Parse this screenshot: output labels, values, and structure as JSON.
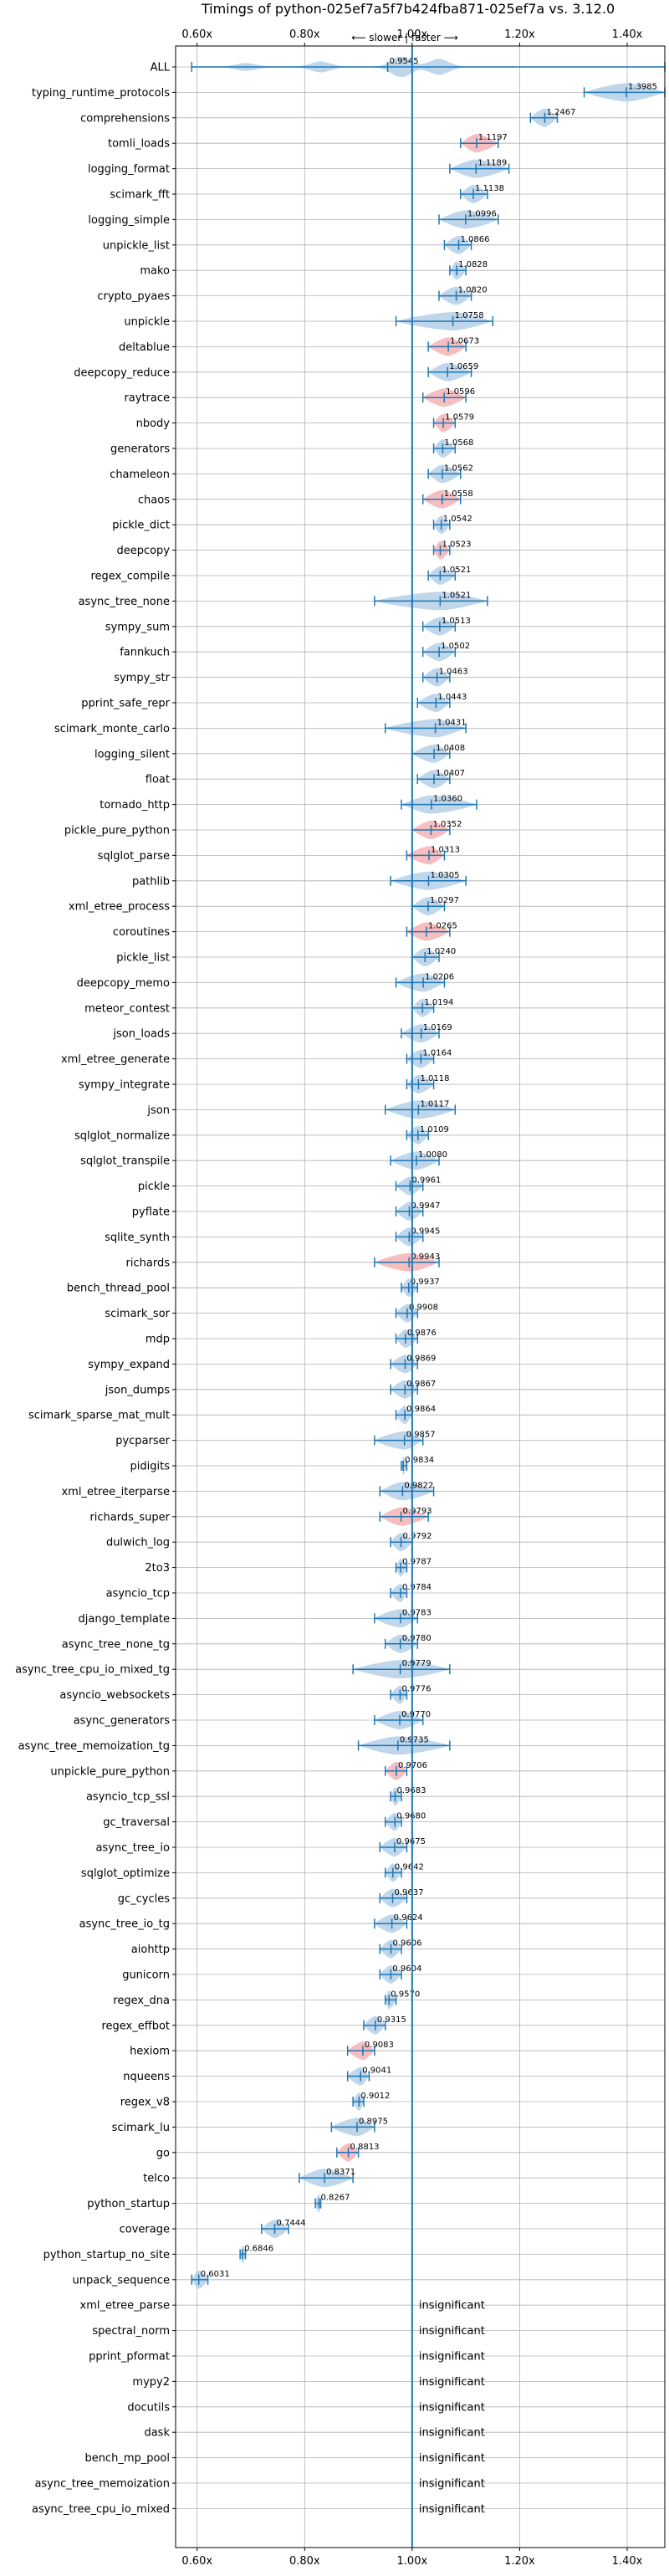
{
  "chart_data": {
    "type": "violin",
    "title": "Timings of python-025ef7a5f7b424fba871-025ef7a vs. 3.12.0",
    "direction_note": "⟵ slower | faster ⟶",
    "xlim": [
      0.56,
      1.47
    ],
    "x_ticks": [
      0.6,
      0.8,
      1.0,
      1.2,
      1.4
    ],
    "x_tick_labels": [
      "0.60x",
      "0.80x",
      "1.00x",
      "1.20x",
      "1.40x"
    ],
    "reference_x": 1.0,
    "insignificant_label": "insignificant",
    "colors": {
      "faster": "#aac8e4",
      "slower": "#f4a8aa",
      "line": "#1f77b4",
      "grid": "#b0b0b0"
    },
    "rows": [
      {
        "name": "ALL",
        "value": 0.9545,
        "lo": 0.59,
        "hi": 1.47,
        "color": "faster",
        "shape": "all"
      },
      {
        "name": "typing_runtime_protocols",
        "value": 1.3985,
        "lo": 1.32,
        "hi": 1.47,
        "color": "faster"
      },
      {
        "name": "comprehensions",
        "value": 1.2467,
        "lo": 1.22,
        "hi": 1.27,
        "color": "faster"
      },
      {
        "name": "tomli_loads",
        "value": 1.1197,
        "lo": 1.09,
        "hi": 1.16,
        "color": "slower"
      },
      {
        "name": "logging_format",
        "value": 1.1189,
        "lo": 1.07,
        "hi": 1.18,
        "color": "faster"
      },
      {
        "name": "scimark_fft",
        "value": 1.1138,
        "lo": 1.09,
        "hi": 1.14,
        "color": "faster"
      },
      {
        "name": "logging_simple",
        "value": 1.0996,
        "lo": 1.05,
        "hi": 1.16,
        "color": "faster"
      },
      {
        "name": "unpickle_list",
        "value": 1.0866,
        "lo": 1.06,
        "hi": 1.11,
        "color": "faster"
      },
      {
        "name": "mako",
        "value": 1.0828,
        "lo": 1.07,
        "hi": 1.1,
        "color": "faster"
      },
      {
        "name": "crypto_pyaes",
        "value": 1.082,
        "lo": 1.05,
        "hi": 1.11,
        "color": "faster"
      },
      {
        "name": "unpickle",
        "value": 1.0758,
        "lo": 0.97,
        "hi": 1.15,
        "color": "faster"
      },
      {
        "name": "deltablue",
        "value": 1.0673,
        "lo": 1.03,
        "hi": 1.1,
        "color": "slower"
      },
      {
        "name": "deepcopy_reduce",
        "value": 1.0659,
        "lo": 1.03,
        "hi": 1.11,
        "color": "faster"
      },
      {
        "name": "raytrace",
        "value": 1.0596,
        "lo": 1.02,
        "hi": 1.1,
        "color": "slower"
      },
      {
        "name": "nbody",
        "value": 1.0579,
        "lo": 1.04,
        "hi": 1.08,
        "color": "slower"
      },
      {
        "name": "generators",
        "value": 1.0568,
        "lo": 1.04,
        "hi": 1.08,
        "color": "faster"
      },
      {
        "name": "chameleon",
        "value": 1.0562,
        "lo": 1.03,
        "hi": 1.09,
        "color": "faster"
      },
      {
        "name": "chaos",
        "value": 1.0558,
        "lo": 1.02,
        "hi": 1.09,
        "color": "slower"
      },
      {
        "name": "pickle_dict",
        "value": 1.0542,
        "lo": 1.04,
        "hi": 1.07,
        "color": "faster"
      },
      {
        "name": "deepcopy",
        "value": 1.0523,
        "lo": 1.04,
        "hi": 1.07,
        "color": "slower"
      },
      {
        "name": "regex_compile",
        "value": 1.0521,
        "lo": 1.03,
        "hi": 1.08,
        "color": "faster"
      },
      {
        "name": "async_tree_none",
        "value": 1.0521,
        "lo": 0.93,
        "hi": 1.14,
        "color": "faster"
      },
      {
        "name": "sympy_sum",
        "value": 1.0513,
        "lo": 1.02,
        "hi": 1.08,
        "color": "faster"
      },
      {
        "name": "fannkuch",
        "value": 1.0502,
        "lo": 1.02,
        "hi": 1.08,
        "color": "faster"
      },
      {
        "name": "sympy_str",
        "value": 1.0463,
        "lo": 1.02,
        "hi": 1.07,
        "color": "faster"
      },
      {
        "name": "pprint_safe_repr",
        "value": 1.0443,
        "lo": 1.01,
        "hi": 1.07,
        "color": "faster"
      },
      {
        "name": "scimark_monte_carlo",
        "value": 1.0431,
        "lo": 0.95,
        "hi": 1.1,
        "color": "faster"
      },
      {
        "name": "logging_silent",
        "value": 1.0408,
        "lo": 1.0,
        "hi": 1.07,
        "color": "faster"
      },
      {
        "name": "float",
        "value": 1.0407,
        "lo": 1.01,
        "hi": 1.07,
        "color": "faster"
      },
      {
        "name": "tornado_http",
        "value": 1.036,
        "lo": 0.98,
        "hi": 1.12,
        "color": "faster"
      },
      {
        "name": "pickle_pure_python",
        "value": 1.0352,
        "lo": 1.0,
        "hi": 1.07,
        "color": "slower"
      },
      {
        "name": "sqlglot_parse",
        "value": 1.0313,
        "lo": 0.99,
        "hi": 1.06,
        "color": "slower"
      },
      {
        "name": "pathlib",
        "value": 1.0305,
        "lo": 0.96,
        "hi": 1.1,
        "color": "faster"
      },
      {
        "name": "xml_etree_process",
        "value": 1.0297,
        "lo": 1.0,
        "hi": 1.06,
        "color": "faster"
      },
      {
        "name": "coroutines",
        "value": 1.0265,
        "lo": 0.99,
        "hi": 1.07,
        "color": "slower"
      },
      {
        "name": "pickle_list",
        "value": 1.024,
        "lo": 1.0,
        "hi": 1.05,
        "color": "faster"
      },
      {
        "name": "deepcopy_memo",
        "value": 1.0206,
        "lo": 0.97,
        "hi": 1.06,
        "color": "faster"
      },
      {
        "name": "meteor_contest",
        "value": 1.0194,
        "lo": 1.0,
        "hi": 1.04,
        "color": "faster"
      },
      {
        "name": "json_loads",
        "value": 1.0169,
        "lo": 0.98,
        "hi": 1.05,
        "color": "faster"
      },
      {
        "name": "xml_etree_generate",
        "value": 1.0164,
        "lo": 0.99,
        "hi": 1.04,
        "color": "faster"
      },
      {
        "name": "sympy_integrate",
        "value": 1.0118,
        "lo": 0.99,
        "hi": 1.04,
        "color": "faster"
      },
      {
        "name": "json",
        "value": 1.0117,
        "lo": 0.95,
        "hi": 1.08,
        "color": "faster"
      },
      {
        "name": "sqlglot_normalize",
        "value": 1.0109,
        "lo": 0.99,
        "hi": 1.03,
        "color": "faster"
      },
      {
        "name": "sqlglot_transpile",
        "value": 1.008,
        "lo": 0.96,
        "hi": 1.05,
        "color": "faster"
      },
      {
        "name": "pickle",
        "value": 0.9961,
        "lo": 0.97,
        "hi": 1.02,
        "color": "faster"
      },
      {
        "name": "pyflate",
        "value": 0.9947,
        "lo": 0.97,
        "hi": 1.02,
        "color": "faster"
      },
      {
        "name": "sqlite_synth",
        "value": 0.9945,
        "lo": 0.97,
        "hi": 1.02,
        "color": "faster"
      },
      {
        "name": "richards",
        "value": 0.9943,
        "lo": 0.93,
        "hi": 1.05,
        "color": "slower"
      },
      {
        "name": "bench_thread_pool",
        "value": 0.9937,
        "lo": 0.98,
        "hi": 1.01,
        "color": "faster"
      },
      {
        "name": "scimark_sor",
        "value": 0.9908,
        "lo": 0.97,
        "hi": 1.01,
        "color": "faster"
      },
      {
        "name": "mdp",
        "value": 0.9876,
        "lo": 0.97,
        "hi": 1.01,
        "color": "faster"
      },
      {
        "name": "sympy_expand",
        "value": 0.9869,
        "lo": 0.96,
        "hi": 1.01,
        "color": "faster"
      },
      {
        "name": "json_dumps",
        "value": 0.9867,
        "lo": 0.96,
        "hi": 1.01,
        "color": "faster"
      },
      {
        "name": "scimark_sparse_mat_mult",
        "value": 0.9864,
        "lo": 0.97,
        "hi": 1.0,
        "color": "faster"
      },
      {
        "name": "pycparser",
        "value": 0.9857,
        "lo": 0.93,
        "hi": 1.02,
        "color": "faster"
      },
      {
        "name": "pidigits",
        "value": 0.9834,
        "lo": 0.98,
        "hi": 0.99,
        "color": "faster"
      },
      {
        "name": "xml_etree_iterparse",
        "value": 0.9822,
        "lo": 0.94,
        "hi": 1.04,
        "color": "faster"
      },
      {
        "name": "richards_super",
        "value": 0.9793,
        "lo": 0.94,
        "hi": 1.03,
        "color": "slower"
      },
      {
        "name": "dulwich_log",
        "value": 0.9792,
        "lo": 0.96,
        "hi": 1.0,
        "color": "faster"
      },
      {
        "name": "2to3",
        "value": 0.9787,
        "lo": 0.97,
        "hi": 0.99,
        "color": "faster"
      },
      {
        "name": "asyncio_tcp",
        "value": 0.9784,
        "lo": 0.96,
        "hi": 0.99,
        "color": "faster"
      },
      {
        "name": "django_template",
        "value": 0.9783,
        "lo": 0.93,
        "hi": 1.01,
        "color": "faster"
      },
      {
        "name": "async_tree_none_tg",
        "value": 0.978,
        "lo": 0.95,
        "hi": 1.01,
        "color": "faster"
      },
      {
        "name": "async_tree_cpu_io_mixed_tg",
        "value": 0.9779,
        "lo": 0.89,
        "hi": 1.07,
        "color": "faster"
      },
      {
        "name": "asyncio_websockets",
        "value": 0.9776,
        "lo": 0.96,
        "hi": 0.99,
        "color": "faster"
      },
      {
        "name": "async_generators",
        "value": 0.977,
        "lo": 0.93,
        "hi": 1.02,
        "color": "faster"
      },
      {
        "name": "async_tree_memoization_tg",
        "value": 0.9735,
        "lo": 0.9,
        "hi": 1.07,
        "color": "faster"
      },
      {
        "name": "unpickle_pure_python",
        "value": 0.9706,
        "lo": 0.95,
        "hi": 0.99,
        "color": "slower"
      },
      {
        "name": "asyncio_tcp_ssl",
        "value": 0.9683,
        "lo": 0.96,
        "hi": 0.98,
        "color": "faster"
      },
      {
        "name": "gc_traversal",
        "value": 0.968,
        "lo": 0.95,
        "hi": 0.98,
        "color": "faster"
      },
      {
        "name": "async_tree_io",
        "value": 0.9675,
        "lo": 0.94,
        "hi": 0.99,
        "color": "faster"
      },
      {
        "name": "sqlglot_optimize",
        "value": 0.9642,
        "lo": 0.95,
        "hi": 0.98,
        "color": "faster"
      },
      {
        "name": "gc_cycles",
        "value": 0.9637,
        "lo": 0.94,
        "hi": 0.99,
        "color": "faster"
      },
      {
        "name": "async_tree_io_tg",
        "value": 0.9624,
        "lo": 0.93,
        "hi": 0.99,
        "color": "faster"
      },
      {
        "name": "aiohttp",
        "value": 0.9606,
        "lo": 0.94,
        "hi": 0.98,
        "color": "faster"
      },
      {
        "name": "gunicorn",
        "value": 0.9604,
        "lo": 0.94,
        "hi": 0.98,
        "color": "faster"
      },
      {
        "name": "regex_dna",
        "value": 0.957,
        "lo": 0.95,
        "hi": 0.97,
        "color": "faster"
      },
      {
        "name": "regex_effbot",
        "value": 0.9315,
        "lo": 0.91,
        "hi": 0.95,
        "color": "faster"
      },
      {
        "name": "hexiom",
        "value": 0.9083,
        "lo": 0.88,
        "hi": 0.93,
        "color": "slower"
      },
      {
        "name": "nqueens",
        "value": 0.9041,
        "lo": 0.88,
        "hi": 0.92,
        "color": "faster"
      },
      {
        "name": "regex_v8",
        "value": 0.9012,
        "lo": 0.89,
        "hi": 0.91,
        "color": "faster"
      },
      {
        "name": "scimark_lu",
        "value": 0.8975,
        "lo": 0.85,
        "hi": 0.93,
        "color": "faster"
      },
      {
        "name": "go",
        "value": 0.8813,
        "lo": 0.86,
        "hi": 0.9,
        "color": "slower"
      },
      {
        "name": "telco",
        "value": 0.8371,
        "lo": 0.79,
        "hi": 0.89,
        "color": "faster"
      },
      {
        "name": "python_startup",
        "value": 0.8267,
        "lo": 0.82,
        "hi": 0.83,
        "color": "faster"
      },
      {
        "name": "coverage",
        "value": 0.7444,
        "lo": 0.72,
        "hi": 0.77,
        "color": "faster"
      },
      {
        "name": "python_startup_no_site",
        "value": 0.6846,
        "lo": 0.68,
        "hi": 0.69,
        "color": "faster"
      },
      {
        "name": "unpack_sequence",
        "value": 0.6031,
        "lo": 0.59,
        "hi": 0.62,
        "color": "faster"
      },
      {
        "name": "xml_etree_parse",
        "insignificant": true
      },
      {
        "name": "spectral_norm",
        "insignificant": true
      },
      {
        "name": "pprint_pformat",
        "insignificant": true
      },
      {
        "name": "mypy2",
        "insignificant": true
      },
      {
        "name": "docutils",
        "insignificant": true
      },
      {
        "name": "dask",
        "insignificant": true
      },
      {
        "name": "bench_mp_pool",
        "insignificant": true
      },
      {
        "name": "async_tree_memoization",
        "insignificant": true
      },
      {
        "name": "async_tree_cpu_io_mixed",
        "insignificant": true
      }
    ]
  }
}
